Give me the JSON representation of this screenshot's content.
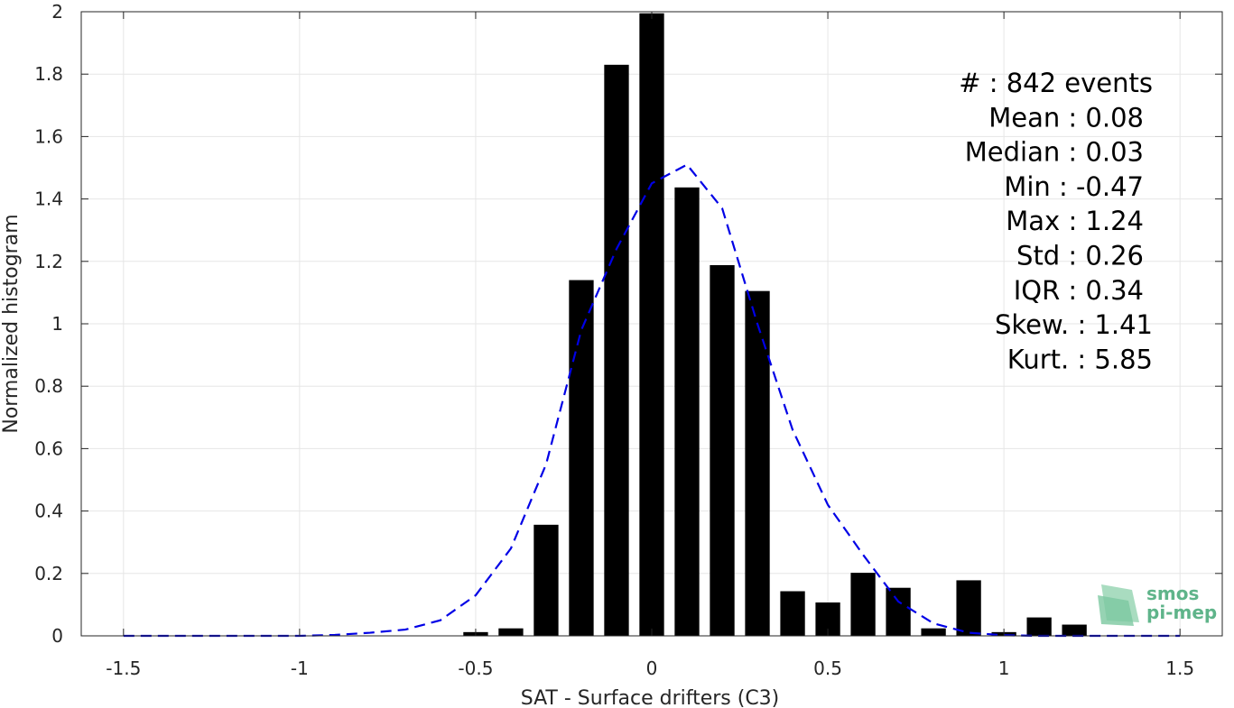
{
  "chart_data": {
    "type": "bar",
    "xlabel": "SAT - Surface drifters (C3)",
    "ylabel": "Normalized histogram",
    "xlim": [
      -1.62,
      1.62
    ],
    "ylim": [
      0,
      2
    ],
    "xticks": [
      -1.5,
      -1,
      -0.5,
      0,
      0.5,
      1,
      1.5
    ],
    "xtick_labels": [
      "-1.5",
      "-1",
      "-0.5",
      "0",
      "0.5",
      "1",
      "1.5"
    ],
    "yticks": [
      0,
      0.2,
      0.4,
      0.6,
      0.8,
      1,
      1.2,
      1.4,
      1.6,
      1.8,
      2
    ],
    "ytick_labels": [
      "0",
      "0.2",
      "0.4",
      "0.6",
      "0.8",
      "1",
      "1.2",
      "1.4",
      "1.6",
      "1.8",
      "2"
    ],
    "grid": true,
    "bar_width": 0.07,
    "bar_color": "#000000",
    "bars": {
      "x": [
        -0.5,
        -0.4,
        -0.3,
        -0.2,
        -0.1,
        0.0,
        0.1,
        0.2,
        0.3,
        0.4,
        0.5,
        0.6,
        0.7,
        0.8,
        0.9,
        1.0,
        1.1,
        1.2
      ],
      "values": [
        0.012,
        0.024,
        0.356,
        1.14,
        1.83,
        1.995,
        1.437,
        1.188,
        1.105,
        0.143,
        0.107,
        0.202,
        0.154,
        0.024,
        0.178,
        0.012,
        0.059,
        0.036
      ]
    },
    "fit_curve": {
      "style": "dashed",
      "color": "#0000e6",
      "x": [
        -1.5,
        -1.4,
        -1.3,
        -1.2,
        -1.1,
        -1.0,
        -0.9,
        -0.8,
        -0.7,
        -0.6,
        -0.5,
        -0.4,
        -0.3,
        -0.2,
        -0.1,
        0.0,
        0.1,
        0.2,
        0.3,
        0.4,
        0.5,
        0.6,
        0.7,
        0.8,
        0.9,
        1.0,
        1.1,
        1.2,
        1.3,
        1.4,
        1.5
      ],
      "y": [
        0,
        0,
        0,
        0,
        0,
        0,
        0.003,
        0.01,
        0.02,
        0.05,
        0.13,
        0.28,
        0.55,
        0.98,
        1.24,
        1.45,
        1.51,
        1.37,
        1.0,
        0.66,
        0.42,
        0.26,
        0.11,
        0.04,
        0.01,
        0.002,
        0,
        0,
        0,
        0,
        0
      ]
    },
    "stats": [
      {
        "label": "#  : 842 events"
      },
      {
        "label": "Mean : 0.08"
      },
      {
        "label": "Median : 0.03"
      },
      {
        "label": "Min : -0.47"
      },
      {
        "label": "Max : 1.24"
      },
      {
        "label": "Std : 0.26"
      },
      {
        "label": "IQR : 0.34"
      },
      {
        "label": "Skew. : 1.41"
      },
      {
        "label": "Kurt. : 5.85"
      }
    ]
  },
  "logo": {
    "line1": "smos",
    "line2": "pi-mep",
    "color": "#5fb48a"
  }
}
